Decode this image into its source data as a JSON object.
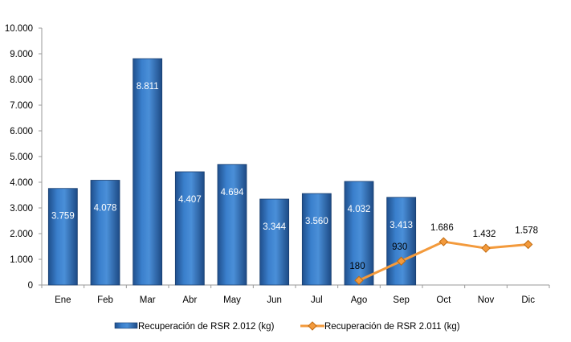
{
  "chart_data": {
    "type": "bar",
    "categories": [
      "Ene",
      "Feb",
      "Mar",
      "Abr",
      "May",
      "Jun",
      "Jul",
      "Ago",
      "Sep",
      "Oct",
      "Nov",
      "Dic"
    ],
    "series": [
      {
        "name": "Recuperación de RSR 2.012 (kg)",
        "type": "bar",
        "color": "#2e6db4",
        "values": [
          3759,
          4078,
          8811,
          4407,
          4694,
          3344,
          3560,
          4032,
          3413,
          null,
          null,
          null
        ],
        "labels": [
          "3.759",
          "4.078",
          "8.811",
          "4.407",
          "4.694",
          "3.344",
          "3.560",
          "4.032",
          "3.413",
          "",
          "",
          ""
        ]
      },
      {
        "name": "Recuperación de RSR 2.011 (kg)",
        "type": "line",
        "color": "#f39a3c",
        "values": [
          null,
          null,
          null,
          null,
          null,
          null,
          null,
          180,
          930,
          1686,
          1432,
          1578
        ],
        "labels": [
          "",
          "",
          "",
          "",
          "",
          "",
          "",
          "180",
          "930",
          "1.686",
          "1.432",
          "1.578"
        ]
      }
    ],
    "ylim": [
      0,
      10000
    ],
    "yticks": [
      0,
      1000,
      2000,
      3000,
      4000,
      5000,
      6000,
      7000,
      8000,
      9000,
      10000
    ],
    "ytick_labels": [
      "0",
      "1.000",
      "2.000",
      "3.000",
      "4.000",
      "5.000",
      "6.000",
      "7.000",
      "8.000",
      "9.000",
      "10.000"
    ],
    "title": "",
    "xlabel": "",
    "ylabel": "",
    "grid": false,
    "legend_position": "bottom"
  }
}
